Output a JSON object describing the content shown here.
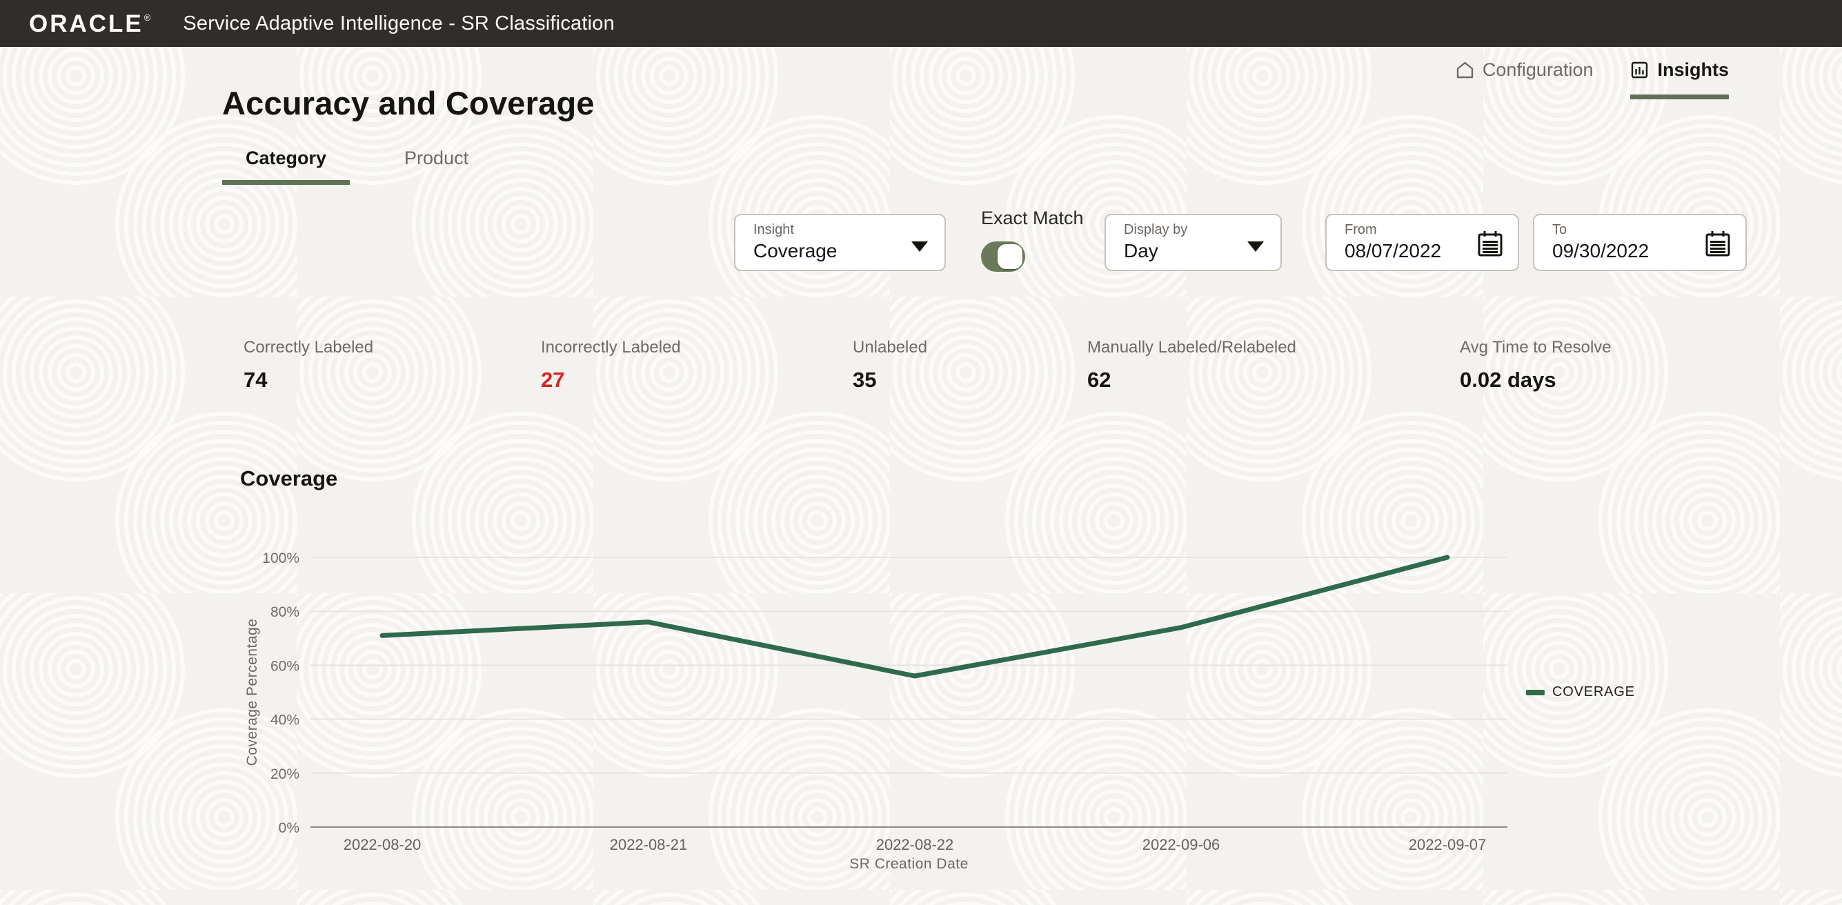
{
  "header": {
    "logo": "ORACLE",
    "logo_reg": "®",
    "title": "Service Adaptive Intelligence - SR Classification"
  },
  "nav": {
    "configuration": "Configuration",
    "insights": "Insights"
  },
  "page": {
    "title": "Accuracy and Coverage"
  },
  "tabs": [
    {
      "label": "Category",
      "active": true
    },
    {
      "label": "Product",
      "active": false
    }
  ],
  "filters": {
    "insight": {
      "label": "Insight",
      "value": "Coverage"
    },
    "exact_match": {
      "label": "Exact Match",
      "state": "on"
    },
    "display_by": {
      "label": "Display by",
      "value": "Day"
    },
    "from": {
      "label": "From",
      "value": "08/07/2022"
    },
    "to": {
      "label": "To",
      "value": "09/30/2022"
    }
  },
  "stats": [
    {
      "label": "Correctly Labeled",
      "value": "74"
    },
    {
      "label": "Incorrectly Labeled",
      "value": "27"
    },
    {
      "label": "Unlabeled",
      "value": "35"
    },
    {
      "label": "Manually Labeled/Relabeled",
      "value": "62"
    },
    {
      "label": "Avg Time to Resolve",
      "value": "0.02 days"
    }
  ],
  "chart_data": {
    "type": "line",
    "title": "Coverage",
    "categories": [
      "2022-08-20",
      "2022-08-21",
      "2022-08-22",
      "2022-09-06",
      "2022-09-07"
    ],
    "series": [
      {
        "name": "COVERAGE",
        "values": [
          71,
          76,
          56,
          74,
          100
        ],
        "color": "#2e6a4b"
      }
    ],
    "xlabel": "SR Creation Date",
    "ylabel": "Coverage Percentage",
    "ylim": [
      0,
      100
    ],
    "yticks": [
      0,
      20,
      40,
      60,
      80,
      100
    ],
    "grid": true,
    "legend_position": "right"
  },
  "colors": {
    "header_bg": "#312d2a",
    "accent_green": "#5f7253",
    "toggle_green": "#69795a",
    "line_green": "#2e6a4b",
    "alert_red": "#d6261d"
  }
}
